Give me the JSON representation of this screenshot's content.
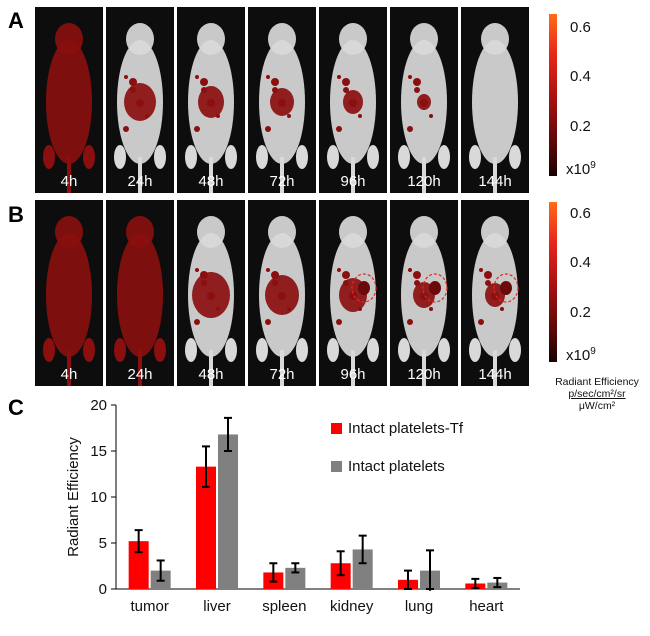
{
  "panels": {
    "a": "A",
    "b": "B",
    "c": "C"
  },
  "imaging": {
    "timepoints": [
      "4h",
      "24h",
      "48h",
      "72h",
      "96h",
      "120h",
      "144h"
    ],
    "colorbar": {
      "ticks": [
        "0.6",
        "0.4",
        "0.2"
      ],
      "unit_base": "x10",
      "unit_exp": "9"
    },
    "radiant_label": {
      "title": "Radiant Efficiency",
      "numerator": "p/sec/cm²/sr",
      "denominator": "μW/cm²"
    },
    "colors": {
      "signal": "#8b0f0f",
      "mouse": "#d9d9d9",
      "tumor_circle": "#e8261a"
    }
  },
  "chart_data": {
    "type": "bar",
    "title": "",
    "xlabel": "",
    "ylabel": "Radiant Efficiency",
    "ylim": [
      0,
      20
    ],
    "yticks": [
      0,
      5,
      10,
      15,
      20
    ],
    "categories": [
      "tumor",
      "liver",
      "spleen",
      "kidney",
      "lung",
      "heart"
    ],
    "series": [
      {
        "name": "Intact platelets-Tf",
        "color": "#ff0000",
        "values": [
          5.2,
          13.3,
          1.8,
          2.8,
          1.0,
          0.6
        ],
        "errors": [
          1.2,
          2.2,
          1.0,
          1.3,
          1.0,
          0.5
        ]
      },
      {
        "name": "Intact platelets",
        "color": "#808080",
        "values": [
          2.0,
          16.8,
          2.3,
          4.3,
          2.0,
          0.7
        ],
        "errors": [
          1.1,
          1.8,
          0.5,
          1.5,
          2.2,
          0.5
        ]
      }
    ],
    "legend_position": "top-right"
  }
}
